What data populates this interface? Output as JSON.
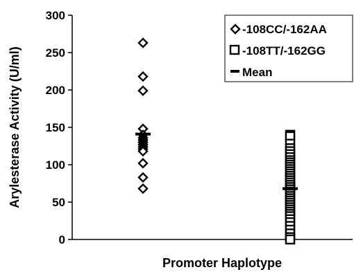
{
  "chart_data": {
    "type": "scatter",
    "title": "",
    "xlabel": "Promoter Haplotype",
    "ylabel": "Arylesterase Activity (U/ml)",
    "ylim": [
      0,
      300
    ],
    "yticks": [
      0,
      50,
      100,
      150,
      200,
      250,
      300
    ],
    "grid": false,
    "legend_position": "top-right",
    "categories": [
      "-108CC/-162AA",
      "-108TT/-162GG"
    ],
    "series": [
      {
        "name": "-108CC/-162AA",
        "marker": "diamond",
        "category": "-108CC/-162AA",
        "values": [
          263,
          218,
          199,
          148,
          140,
          136,
          133,
          130,
          127,
          124,
          121,
          118,
          102,
          83,
          68
        ]
      },
      {
        "name": "-108TT/-162GG",
        "marker": "square",
        "category": "-108TT/-162GG",
        "values": [
          140,
          138,
          128,
          122,
          118,
          114,
          110,
          106,
          103,
          100,
          97,
          94,
          91,
          88,
          85,
          82,
          79,
          76,
          73,
          70,
          67,
          64,
          61,
          58,
          55,
          52,
          49,
          46,
          43,
          40,
          37,
          34,
          31,
          27,
          23,
          18,
          13,
          8,
          3,
          0
        ]
      }
    ],
    "means": [
      {
        "category": "-108CC/-162AA",
        "value": 141
      },
      {
        "category": "-108TT/-162GG",
        "value": 68
      }
    ],
    "legend": [
      {
        "label": "-108CC/-162AA",
        "marker": "diamond"
      },
      {
        "label": "-108TT/-162GG",
        "marker": "square"
      },
      {
        "label": "Mean",
        "marker": "dash"
      }
    ]
  }
}
